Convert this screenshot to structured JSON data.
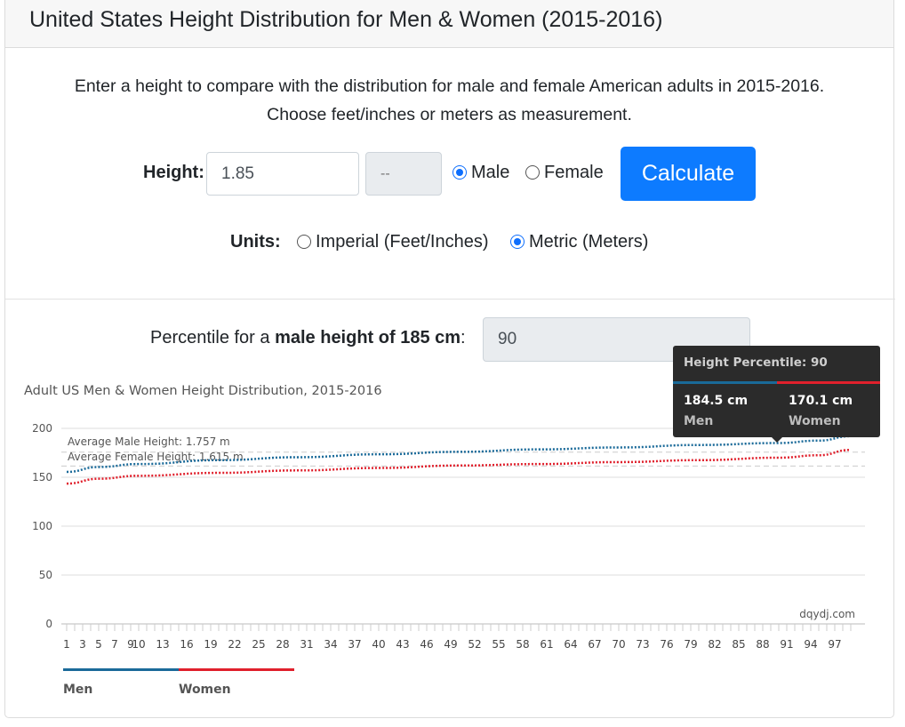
{
  "header": {
    "title": "United States Height Distribution for Men & Women (2015-2016)"
  },
  "intro": {
    "line1": "Enter a height to compare with the distribution for male and female American adults in 2015-2016.",
    "line2": "Choose feet/inches or meters as measurement."
  },
  "form": {
    "height_label": "Height:",
    "height_value": "1.85",
    "inches_placeholder": "--",
    "sex_options": [
      {
        "label": "Male",
        "selected": true
      },
      {
        "label": "Female",
        "selected": false
      }
    ],
    "calculate_label": "Calculate",
    "units_label": "Units:",
    "unit_options": [
      {
        "label": "Imperial (Feet/Inches)",
        "selected": false
      },
      {
        "label": "Metric (Meters)",
        "selected": true
      }
    ]
  },
  "result": {
    "prefix": "Percentile for a ",
    "bold": "male height of 185 cm",
    "suffix": ":",
    "value": "90"
  },
  "tooltip": {
    "title": "Height Percentile: 90",
    "men_value": "184.5 cm",
    "men_label": "Men",
    "women_value": "170.1 cm",
    "women_label": "Women"
  },
  "chart_data": {
    "type": "line",
    "title": "Adult US Men & Women Height Distribution, 2015-2016",
    "xlabel": "",
    "ylabel": "",
    "xlim": [
      1,
      99
    ],
    "ylim": [
      0,
      200
    ],
    "y_ticks": [
      0,
      50,
      100,
      150,
      200
    ],
    "x_tick_labels": [
      1,
      3,
      5,
      7,
      9,
      10,
      13,
      16,
      19,
      22,
      25,
      28,
      31,
      34,
      37,
      40,
      43,
      46,
      49,
      52,
      55,
      58,
      61,
      64,
      67,
      70,
      73,
      76,
      79,
      82,
      85,
      88,
      91,
      94,
      97
    ],
    "grid": true,
    "legend": "bottom-left",
    "credit": "dqydj.com",
    "series": [
      {
        "name": "Men",
        "color": "#1a6a99",
        "points": [
          [
            1,
            155.5
          ],
          [
            5,
            160.5
          ],
          [
            10,
            163.5
          ],
          [
            20,
            167.5
          ],
          [
            30,
            170.5
          ],
          [
            40,
            173.5
          ],
          [
            50,
            176
          ],
          [
            60,
            178.5
          ],
          [
            70,
            180.5
          ],
          [
            80,
            183
          ],
          [
            90,
            185
          ],
          [
            95,
            187.5
          ],
          [
            99,
            192
          ]
        ]
      },
      {
        "name": "Women",
        "color": "#e0202c",
        "points": [
          [
            1,
            143.5
          ],
          [
            5,
            148.5
          ],
          [
            10,
            151.5
          ],
          [
            20,
            154.5
          ],
          [
            30,
            157
          ],
          [
            40,
            159.5
          ],
          [
            50,
            162
          ],
          [
            60,
            163.5
          ],
          [
            70,
            165.5
          ],
          [
            80,
            167.5
          ],
          [
            90,
            170
          ],
          [
            95,
            172.5
          ],
          [
            99,
            178
          ]
        ]
      }
    ],
    "reference_lines": [
      {
        "label": "Average Male Height: 1.757 m",
        "value": 175.7
      },
      {
        "label": "Average Female Height: 1.615 m",
        "value": 161.5
      }
    ],
    "highlight_x": 90
  }
}
